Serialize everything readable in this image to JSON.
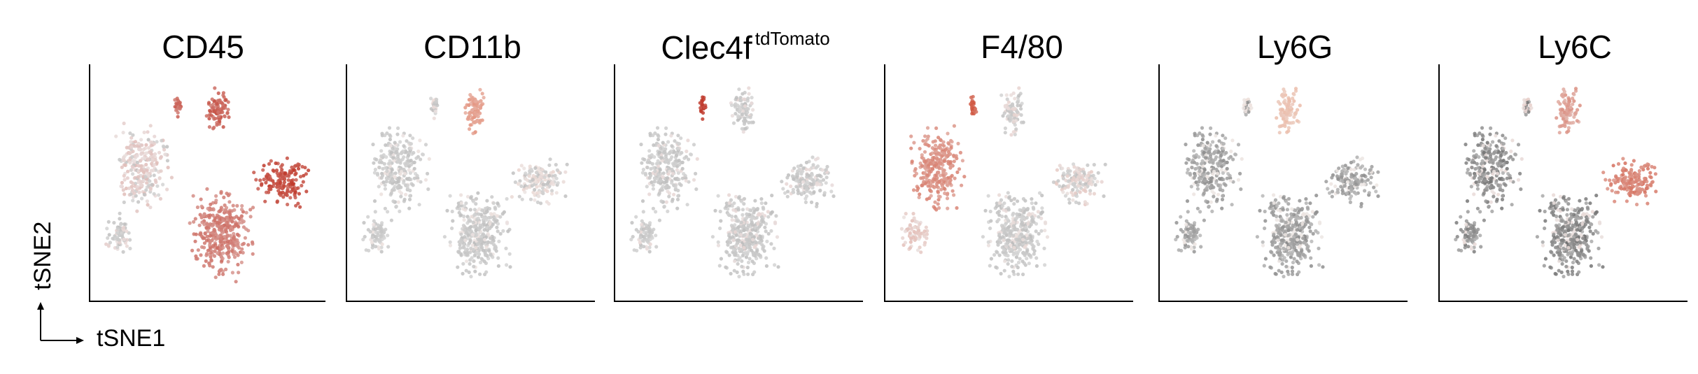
{
  "chart_data": {
    "type": "scatter",
    "description_free": true,
    "x_axis_label": "tSNE1",
    "y_axis_label": "tSNE2",
    "panels": [
      {
        "name": "CD45",
        "superscript": "",
        "color_low": "#bdbdbd",
        "color_high": "#c0392b",
        "cluster_expression": {
          "left_group": 0.15,
          "bottom_left_arm": 0.05,
          "top_small": 0.7,
          "top_right": 0.75,
          "center_bottom": 0.6,
          "right_arm": 0.9
        }
      },
      {
        "name": "CD11b",
        "superscript": "",
        "color_low": "#bdbdbd",
        "color_high": "#e2836b",
        "cluster_expression": {
          "left_group": 0.0,
          "bottom_left_arm": 0.0,
          "top_small": 0.05,
          "top_right": 0.7,
          "center_bottom": 0.0,
          "right_arm": 0.1
        }
      },
      {
        "name": "Clec4f",
        "superscript": "tdTomato",
        "color_low": "#bdbdbd",
        "color_high": "#c0392b",
        "cluster_expression": {
          "left_group": 0.0,
          "bottom_left_arm": 0.0,
          "top_small": 0.95,
          "top_right": 0.0,
          "center_bottom": 0.0,
          "right_arm": 0.0
        }
      },
      {
        "name": "F4/80",
        "superscript": "",
        "color_low": "#bdbdbd",
        "color_high": "#d0553f",
        "cluster_expression": {
          "left_group": 0.6,
          "bottom_left_arm": 0.2,
          "top_small": 0.9,
          "top_right": 0.05,
          "center_bottom": 0.0,
          "right_arm": 0.1
        }
      },
      {
        "name": "Ly6G",
        "superscript": "",
        "color_low": "#8a8a8a",
        "color_high": "#eba98f",
        "cluster_expression": {
          "left_group": 0.0,
          "bottom_left_arm": 0.0,
          "top_small": 0.1,
          "top_right": 0.6,
          "center_bottom": 0.0,
          "right_arm": 0.0
        }
      },
      {
        "name": "Ly6C",
        "superscript": "",
        "color_low": "#707070",
        "color_high": "#d0553f",
        "cluster_expression": {
          "left_group": 0.0,
          "bottom_left_arm": 0.0,
          "top_small": 0.1,
          "top_right": 0.5,
          "center_bottom": 0.0,
          "right_arm": 0.7
        }
      }
    ]
  }
}
